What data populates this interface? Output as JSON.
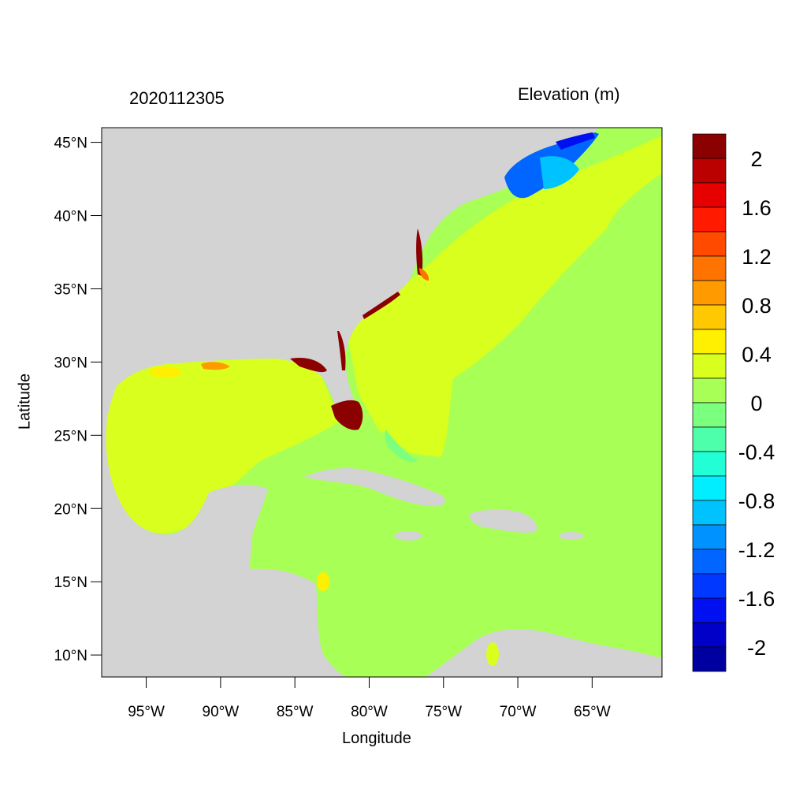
{
  "title_left": "2020112305",
  "title_right": "Elevation (m)",
  "x_axis_title": "Longitude",
  "y_axis_title": "Latitude",
  "lat_ticks": [
    {
      "value": 45,
      "label": "45°N"
    },
    {
      "value": 40,
      "label": "40°N"
    },
    {
      "value": 35,
      "label": "35°N"
    },
    {
      "value": 30,
      "label": "30°N"
    },
    {
      "value": 25,
      "label": "25°N"
    },
    {
      "value": 20,
      "label": "20°N"
    },
    {
      "value": 15,
      "label": "15°N"
    },
    {
      "value": 10,
      "label": "10°N"
    }
  ],
  "lon_ticks": [
    {
      "value": -95,
      "label": "95°W"
    },
    {
      "value": -90,
      "label": "90°W"
    },
    {
      "value": -85,
      "label": "85°W"
    },
    {
      "value": -80,
      "label": "80°W"
    },
    {
      "value": -75,
      "label": "75°W"
    },
    {
      "value": -70,
      "label": "70°W"
    },
    {
      "value": -65,
      "label": "65°W"
    }
  ],
  "colorbar": {
    "colors_top_to_bottom": [
      "#8b0000",
      "#bb0000",
      "#e60000",
      "#ff1a00",
      "#ff4a00",
      "#ff7300",
      "#ff9a00",
      "#ffc800",
      "#ffef00",
      "#d9ff1f",
      "#a8ff55",
      "#7aff7e",
      "#4dffab",
      "#22ffd6",
      "#00eeff",
      "#00c2ff",
      "#0092ff",
      "#0066ff",
      "#0038ff",
      "#0010f0",
      "#0000c8",
      "#0000a0"
    ],
    "labels": [
      {
        "text": "2",
        "after_bin": 1
      },
      {
        "text": "1.6",
        "after_bin": 3
      },
      {
        "text": "1.2",
        "after_bin": 5
      },
      {
        "text": "0.8",
        "after_bin": 7
      },
      {
        "text": "0.4",
        "after_bin": 9
      },
      {
        "text": "0",
        "after_bin": 11
      },
      {
        "text": "-0.4",
        "after_bin": 13
      },
      {
        "text": "-0.8",
        "after_bin": 15
      },
      {
        "text": "-1.2",
        "after_bin": 17
      },
      {
        "text": "-1.6",
        "after_bin": 19
      },
      {
        "text": "-2",
        "after_bin": 21
      }
    ]
  },
  "map_extent": {
    "lon_min": -98,
    "lon_max": -60.3,
    "lat_min": 8.5,
    "lat_max": 46
  },
  "colors": {
    "land": "#d3d3d3",
    "ocean_open": "#a8ff55",
    "ocean_shelf": "#d9ff1f",
    "surge_high": "#8b0000",
    "surge_neg": "#0066ff"
  }
}
